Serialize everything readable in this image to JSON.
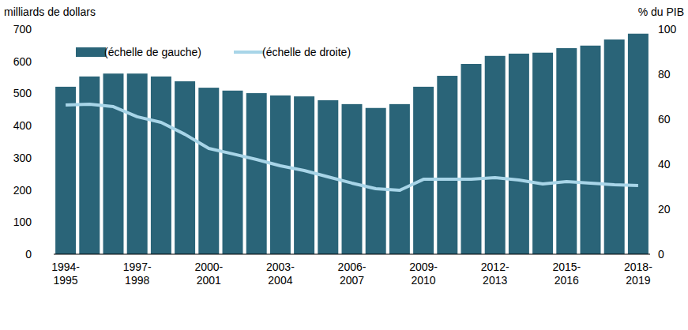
{
  "chart_data": {
    "type": "bar",
    "y_label": "milliards  de dollars",
    "y2_label": "% du PIB",
    "categories": [
      "1994-1995",
      null,
      null,
      "1997-1998",
      null,
      null,
      "2000-2001",
      null,
      null,
      "2003-2004",
      null,
      null,
      "2006-2007",
      null,
      null,
      "2009-2010",
      null,
      null,
      "2012-2013",
      null,
      null,
      "2015-2016",
      null,
      null,
      "2018-2019"
    ],
    "series": [
      {
        "name": "(échelle de gauche)",
        "type": "bar",
        "color": "#2a6478",
        "values": [
          521,
          553,
          562,
          562,
          553,
          538,
          518,
          509,
          501,
          494,
          491,
          479,
          467,
          455,
          467,
          521,
          555,
          592,
          617,
          624,
          627,
          641,
          649,
          668,
          686
        ]
      },
      {
        "name": "(échelle de droite)",
        "type": "line",
        "axis": "y2",
        "color": "#a8d5e8",
        "values": [
          66.3,
          66.7,
          65.6,
          61.1,
          58.6,
          53.3,
          47.0,
          44.6,
          42.1,
          39.3,
          37.2,
          34.4,
          31.6,
          29.1,
          28.4,
          33.3,
          33.3,
          33.3,
          34.0,
          33.0,
          31.2,
          32.3,
          31.6,
          30.9,
          30.5
        ]
      }
    ],
    "ylim": [
      0,
      700
    ],
    "yticks": [
      0,
      100,
      200,
      300,
      400,
      500,
      600,
      700
    ],
    "y2lim": [
      0,
      100
    ],
    "y2ticks": [
      0,
      20,
      40,
      60,
      80,
      100
    ],
    "grid": false,
    "legend": "top-left"
  }
}
